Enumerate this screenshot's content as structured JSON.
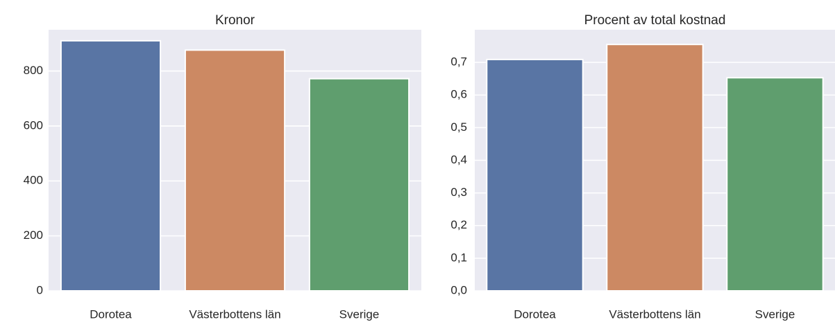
{
  "chart_data": [
    {
      "type": "bar",
      "title": "Kronor",
      "categories": [
        "Dorotea",
        "Västerbottens län",
        "Sverige"
      ],
      "values": [
        910,
        876,
        772
      ],
      "colors": [
        "#5975a4",
        "#cc8963",
        "#5f9e6e"
      ],
      "ylim": [
        0,
        950
      ],
      "yticks": [
        0,
        200,
        400,
        600,
        800
      ],
      "ytick_labels": [
        "0",
        "200",
        "400",
        "600",
        "800"
      ],
      "xlabel": "",
      "ylabel": "",
      "grid": true,
      "background": "#eaeaf2"
    },
    {
      "type": "bar",
      "title": "Procent av total kostnad",
      "categories": [
        "Dorotea",
        "Västerbottens län",
        "Sverige"
      ],
      "values": [
        0.709,
        0.755,
        0.653
      ],
      "colors": [
        "#5975a4",
        "#cc8963",
        "#5f9e6e"
      ],
      "ylim": [
        0,
        0.8
      ],
      "yticks": [
        0.0,
        0.1,
        0.2,
        0.3,
        0.4,
        0.5,
        0.6,
        0.7
      ],
      "ytick_labels": [
        "0,0",
        "0,1",
        "0,2",
        "0,3",
        "0,4",
        "0,5",
        "0,6",
        "0,7"
      ],
      "xlabel": "",
      "ylabel": "",
      "grid": true,
      "background": "#eaeaf2"
    }
  ]
}
